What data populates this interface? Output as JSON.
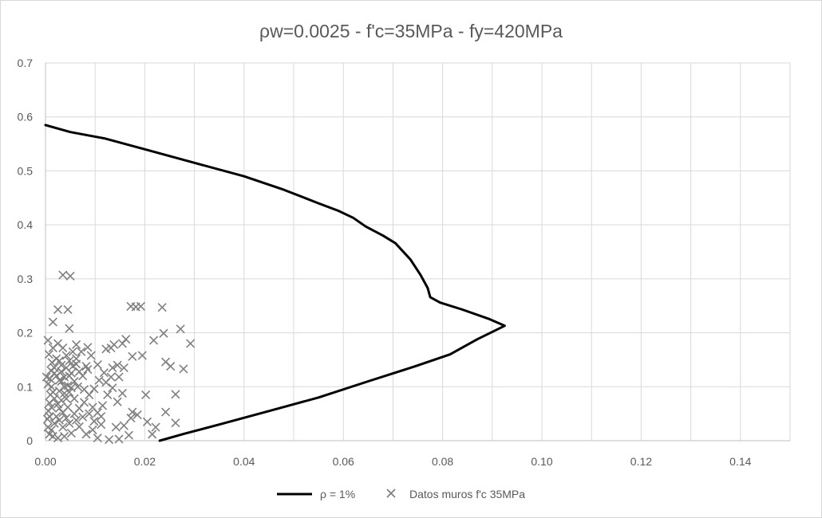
{
  "chart_data": {
    "type": "scatter",
    "title": "ρw=0.0025 - f'c=35MPa - fy=420MPa",
    "xlabel": "",
    "ylabel": "",
    "xlim": [
      0,
      0.15
    ],
    "ylim": [
      0,
      0.7
    ],
    "x_ticks": [
      "0.00",
      "0.02",
      "0.04",
      "0.06",
      "0.08",
      "0.10",
      "0.12",
      "0.14"
    ],
    "y_ticks": [
      "0",
      "0.1",
      "0.2",
      "0.3",
      "0.4",
      "0.5",
      "0.6",
      "0.7"
    ],
    "grid": true,
    "legend_position": "bottom",
    "series": [
      {
        "name": "ρ = 1%",
        "kind": "line",
        "color": "#000000",
        "points": [
          [
            0.0,
            0.585
          ],
          [
            0.005,
            0.572
          ],
          [
            0.012,
            0.56
          ],
          [
            0.02,
            0.54
          ],
          [
            0.03,
            0.515
          ],
          [
            0.04,
            0.49
          ],
          [
            0.048,
            0.465
          ],
          [
            0.055,
            0.44
          ],
          [
            0.059,
            0.426
          ],
          [
            0.062,
            0.413
          ],
          [
            0.0645,
            0.397
          ],
          [
            0.068,
            0.38
          ],
          [
            0.0705,
            0.366
          ],
          [
            0.0735,
            0.336
          ],
          [
            0.0755,
            0.308
          ],
          [
            0.077,
            0.283
          ],
          [
            0.0775,
            0.266
          ],
          [
            0.0795,
            0.256
          ],
          [
            0.084,
            0.243
          ],
          [
            0.0895,
            0.225
          ],
          [
            0.0925,
            0.213
          ],
          [
            0.087,
            0.188
          ],
          [
            0.0815,
            0.16
          ],
          [
            0.0745,
            0.138
          ],
          [
            0.065,
            0.11
          ],
          [
            0.055,
            0.08
          ],
          [
            0.045,
            0.055
          ],
          [
            0.035,
            0.03
          ],
          [
            0.028,
            0.013
          ],
          [
            0.023,
            0.0
          ]
        ]
      },
      {
        "name": "Datos muros f'c 35MPa",
        "kind": "scatter",
        "marker": "x",
        "color": "#7f7f7f",
        "points": [
          [
            0.0035,
            0.307
          ],
          [
            0.005,
            0.305
          ],
          [
            0.0025,
            0.243
          ],
          [
            0.0045,
            0.243
          ],
          [
            0.0015,
            0.22
          ],
          [
            0.0048,
            0.208
          ],
          [
            0.0172,
            0.249
          ],
          [
            0.0192,
            0.249
          ],
          [
            0.0235,
            0.247
          ],
          [
            0.0182,
            0.248
          ],
          [
            0.0272,
            0.207
          ],
          [
            0.0238,
            0.199
          ],
          [
            0.0218,
            0.186
          ],
          [
            0.0292,
            0.18
          ],
          [
            0.0162,
            0.188
          ],
          [
            0.0155,
            0.18
          ],
          [
            0.0175,
            0.156
          ],
          [
            0.0195,
            0.158
          ],
          [
            0.0242,
            0.146
          ],
          [
            0.0252,
            0.138
          ],
          [
            0.0278,
            0.133
          ],
          [
            0.0145,
            0.14
          ],
          [
            0.0135,
            0.135
          ],
          [
            0.0138,
            0.178
          ],
          [
            0.0132,
            0.172
          ],
          [
            0.0122,
            0.17
          ],
          [
            0.0202,
            0.085
          ],
          [
            0.0262,
            0.086
          ],
          [
            0.0175,
            0.053
          ],
          [
            0.0242,
            0.053
          ],
          [
            0.0205,
            0.035
          ],
          [
            0.0172,
            0.042
          ],
          [
            0.0262,
            0.033
          ],
          [
            0.0222,
            0.025
          ],
          [
            0.0215,
            0.012
          ],
          [
            0.0168,
            0.01
          ],
          [
            0.0142,
            0.025
          ],
          [
            0.0112,
            0.045
          ],
          [
            0.0128,
            0.002
          ],
          [
            0.0148,
            0.003
          ],
          [
            0.0105,
            0.005
          ],
          [
            0.0082,
            0.012
          ],
          [
            0.0095,
            0.02
          ],
          [
            0.0062,
            0.038
          ],
          [
            0.0068,
            0.06
          ],
          [
            0.0078,
            0.071
          ],
          [
            0.0088,
            0.085
          ],
          [
            0.0098,
            0.096
          ],
          [
            0.0108,
            0.112
          ],
          [
            0.0118,
            0.126
          ],
          [
            0.0105,
            0.141
          ],
          [
            0.0092,
            0.158
          ],
          [
            0.0085,
            0.173
          ],
          [
            0.0072,
            0.165
          ],
          [
            0.0062,
            0.152
          ],
          [
            0.0055,
            0.138
          ],
          [
            0.0048,
            0.12
          ],
          [
            0.0045,
            0.102
          ],
          [
            0.0038,
            0.088
          ],
          [
            0.0032,
            0.075
          ],
          [
            0.0028,
            0.06
          ],
          [
            0.0022,
            0.045
          ],
          [
            0.0018,
            0.032
          ],
          [
            0.0012,
            0.02
          ],
          [
            0.0008,
            0.012
          ],
          [
            0.0005,
            0.025
          ],
          [
            0.0004,
            0.04
          ],
          [
            0.0006,
            0.055
          ],
          [
            0.0008,
            0.07
          ],
          [
            0.001,
            0.085
          ],
          [
            0.0012,
            0.1
          ],
          [
            0.0009,
            0.115
          ],
          [
            0.0011,
            0.13
          ],
          [
            0.0013,
            0.145
          ],
          [
            0.0007,
            0.16
          ],
          [
            0.0015,
            0.172
          ],
          [
            0.0005,
            0.186
          ],
          [
            0.0025,
            0.18
          ],
          [
            0.0035,
            0.172
          ],
          [
            0.0042,
            0.158
          ],
          [
            0.0028,
            0.148
          ],
          [
            0.0018,
            0.135
          ],
          [
            0.0022,
            0.12
          ],
          [
            0.0032,
            0.11
          ],
          [
            0.0042,
            0.135
          ],
          [
            0.0058,
            0.11
          ],
          [
            0.0065,
            0.1
          ],
          [
            0.0075,
            0.12
          ],
          [
            0.0085,
            0.132
          ],
          [
            0.0095,
            0.062
          ],
          [
            0.0105,
            0.052
          ],
          [
            0.0115,
            0.065
          ],
          [
            0.0125,
            0.085
          ],
          [
            0.0135,
            0.098
          ],
          [
            0.0148,
            0.118
          ],
          [
            0.0158,
            0.135
          ],
          [
            0.0112,
            0.03
          ],
          [
            0.0098,
            0.036
          ],
          [
            0.0075,
            0.044
          ],
          [
            0.0058,
            0.05
          ],
          [
            0.0045,
            0.062
          ],
          [
            0.0035,
            0.052
          ],
          [
            0.0025,
            0.068
          ],
          [
            0.0015,
            0.09
          ],
          [
            0.0005,
            0.105
          ],
          [
            0.0002,
            0.118
          ],
          [
            0.0022,
            0.152
          ],
          [
            0.0032,
            0.14
          ],
          [
            0.0055,
            0.165
          ],
          [
            0.0068,
            0.128
          ],
          [
            0.0078,
            0.095
          ],
          [
            0.0088,
            0.05
          ],
          [
            0.0068,
            0.026
          ],
          [
            0.0052,
            0.014
          ],
          [
            0.0038,
            0.008
          ],
          [
            0.0025,
            0.005
          ],
          [
            0.0015,
            0.008
          ],
          [
            0.0035,
            0.025
          ],
          [
            0.0048,
            0.032
          ],
          [
            0.0058,
            0.078
          ],
          [
            0.0048,
            0.09
          ],
          [
            0.0038,
            0.1
          ],
          [
            0.0028,
            0.112
          ],
          [
            0.0018,
            0.125
          ],
          [
            0.0048,
            0.148
          ],
          [
            0.0062,
            0.178
          ],
          [
            0.0082,
            0.138
          ],
          [
            0.0122,
            0.108
          ],
          [
            0.0132,
            0.118
          ],
          [
            0.0145,
            0.072
          ],
          [
            0.0155,
            0.088
          ],
          [
            0.0158,
            0.028
          ],
          [
            0.0185,
            0.048
          ],
          [
            0.0028,
            0.092
          ],
          [
            0.0042,
            0.078
          ],
          [
            0.0052,
            0.098
          ],
          [
            0.0012,
            0.062
          ],
          [
            0.0018,
            0.078
          ],
          [
            0.0008,
            0.045
          ],
          [
            0.0028,
            0.038
          ],
          [
            0.0042,
            0.042
          ],
          [
            0.0032,
            0.128
          ],
          [
            0.0038,
            0.118
          ],
          [
            0.0052,
            0.125
          ],
          [
            0.0062,
            0.142
          ]
        ]
      }
    ]
  }
}
